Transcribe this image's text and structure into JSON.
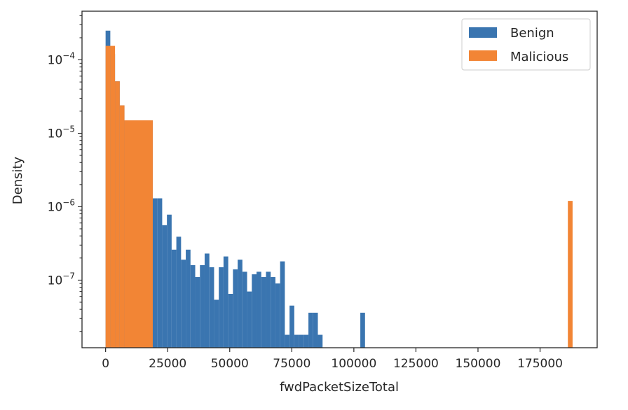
{
  "chart_data": {
    "type": "bar",
    "subtype": "histogram",
    "xlabel": "fwdPacketSizeTotal",
    "ylabel": "Density",
    "yscale": "log",
    "xlim": [
      -9500,
      198000
    ],
    "ylim": [
      1.2e-08,
      0.00046
    ],
    "xticks": [
      0,
      25000,
      50000,
      75000,
      100000,
      125000,
      150000,
      175000
    ],
    "xtick_labels": [
      "0",
      "25000",
      "50000",
      "75000",
      "100000",
      "125000",
      "150000",
      "175000"
    ],
    "yticks": [
      1e-07,
      1e-06,
      1e-05,
      0.0001
    ],
    "ytick_labels": [
      {
        "base": "10",
        "exp": "−7"
      },
      {
        "base": "10",
        "exp": "−6"
      },
      {
        "base": "10",
        "exp": "−5"
      },
      {
        "base": "10",
        "exp": "−4"
      }
    ],
    "grid": false,
    "legend_position": "top-right",
    "series": [
      {
        "name": "Benign",
        "color": "#3a75b0",
        "bin_start": 0,
        "bin_width": 1900,
        "values": [
          0.00025,
          0.00012,
          5.1e-05,
          2.4e-05,
          1.5e-05,
          1.5e-05,
          1.5e-05,
          1.5e-05,
          1.5e-05,
          1.5e-05,
          1.3e-06,
          1.3e-06,
          5.6e-07,
          7.8e-07,
          2.6e-07,
          3.9e-07,
          1.9e-07,
          2.6e-07,
          1.6e-07,
          1.1e-07,
          1.6e-07,
          2.3e-07,
          1.5e-07,
          5.4e-08,
          1.5e-07,
          2.1e-07,
          6.5e-08,
          1.4e-07,
          1.9e-07,
          1.3e-07,
          7e-08,
          1.2e-07,
          1.3e-07,
          1.1e-07,
          1.3e-07,
          1.1e-07,
          9e-08,
          1.8e-07,
          1.8e-08,
          4.5e-08,
          1.8e-08,
          1.8e-08,
          1.8e-08,
          3.6e-08,
          3.6e-08,
          1.8e-08,
          0,
          0,
          0,
          0,
          0,
          0,
          0,
          0,
          3.6e-08
        ]
      },
      {
        "name": "Malicious",
        "color": "#f28535",
        "bins": [
          {
            "x0": 0,
            "x1": 1900,
            "y": 0.000155
          },
          {
            "x0": 1900,
            "x1": 3800,
            "y": 0.000155
          },
          {
            "x0": 3800,
            "x1": 5700,
            "y": 5.1e-05
          },
          {
            "x0": 5700,
            "x1": 7600,
            "y": 2.4e-05
          },
          {
            "x0": 7600,
            "x1": 19000,
            "y": 1.5e-05
          },
          {
            "x0": 186200,
            "x1": 188100,
            "y": 1.2e-06
          }
        ]
      }
    ]
  }
}
